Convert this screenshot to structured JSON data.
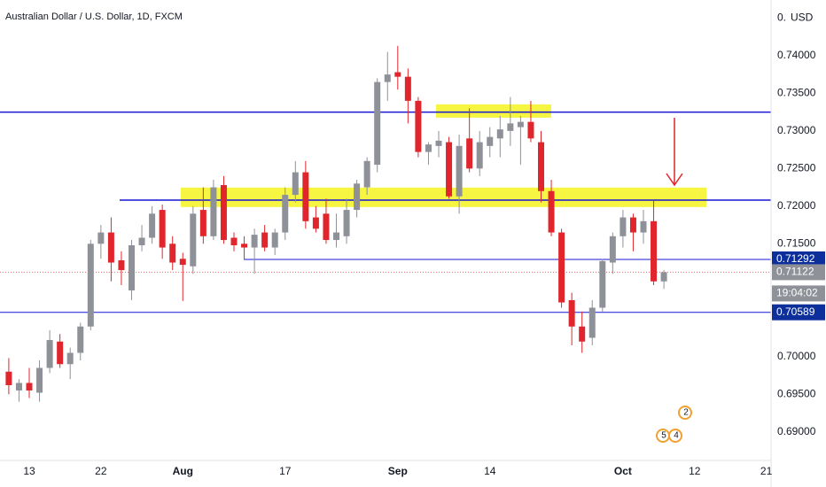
{
  "chart_data": {
    "type": "candlestick",
    "title": "Australian Dollar / U.S. Dollar, 1D, FXCM",
    "currency_label": "USD",
    "categories": [
      null,
      null,
      "13",
      null,
      null,
      null,
      null,
      null,
      null,
      "22",
      null,
      null,
      null,
      null,
      null,
      null,
      null,
      "Aug",
      null,
      null,
      null,
      null,
      null,
      null,
      null,
      null,
      null,
      "17",
      null,
      null,
      null,
      null,
      null,
      null,
      null,
      null,
      null,
      null,
      "Sep",
      null,
      null,
      null,
      null,
      null,
      null,
      null,
      null,
      "14",
      null,
      null,
      null,
      null,
      null,
      null,
      null,
      null,
      null,
      null,
      null,
      null,
      "Oct",
      null,
      null,
      null,
      null,
      null,
      null,
      "12",
      null,
      null,
      null,
      null,
      null,
      null,
      "21"
    ],
    "open": [
      0.698,
      0.6955,
      0.6965,
      0.6952,
      0.6985,
      0.702,
      0.699,
      0.7005,
      0.704,
      0.715,
      0.7165,
      0.7128,
      0.7088,
      0.7148,
      0.7158,
      0.7195,
      0.715,
      0.713,
      0.712,
      0.7195,
      0.716,
      0.7228,
      0.7158,
      0.715,
      0.7145,
      0.7165,
      0.7145,
      0.7165,
      0.7215,
      0.7245,
      0.7185,
      0.719,
      0.7155,
      0.716,
      0.7195,
      0.7225,
      0.7255,
      0.7365,
      0.7378,
      0.7372,
      0.734,
      0.7272,
      0.728,
      0.7285,
      0.7213,
      0.729,
      0.725,
      0.728,
      0.729,
      0.73,
      0.7305,
      0.7312,
      0.7285,
      0.722,
      0.7165,
      0.7075,
      0.704,
      0.7025,
      0.7065,
      0.7125,
      0.716,
      0.7185,
      0.7165,
      0.718,
      0.71,
      null,
      null,
      null,
      null,
      null,
      null,
      null,
      null,
      null,
      null
    ],
    "high": [
      0.6998,
      0.697,
      0.6985,
      0.6995,
      0.7035,
      0.703,
      0.7012,
      0.7045,
      0.7155,
      0.7175,
      0.7185,
      0.714,
      0.7155,
      0.7175,
      0.72,
      0.7202,
      0.716,
      0.7138,
      0.72,
      0.7225,
      0.7235,
      0.724,
      0.7165,
      0.716,
      0.717,
      0.7175,
      0.717,
      0.7225,
      0.726,
      0.726,
      0.72,
      0.721,
      0.719,
      0.721,
      0.7235,
      0.7265,
      0.737,
      0.7405,
      0.7413,
      0.7383,
      0.7345,
      0.7285,
      0.73,
      0.7292,
      0.7295,
      0.733,
      0.73,
      0.7305,
      0.732,
      0.7345,
      0.732,
      0.734,
      0.73,
      0.7235,
      0.717,
      0.7085,
      0.706,
      0.7075,
      0.713,
      0.7165,
      0.7195,
      0.719,
      0.7195,
      0.7208,
      0.7115,
      null,
      null,
      null,
      null,
      null,
      null,
      null,
      null,
      null,
      null
    ],
    "low": [
      0.695,
      0.694,
      0.6945,
      0.694,
      0.6978,
      0.6985,
      0.697,
      0.6995,
      0.7035,
      0.713,
      0.71,
      0.7095,
      0.7075,
      0.714,
      0.715,
      0.713,
      0.7115,
      0.7074,
      0.711,
      0.715,
      0.7155,
      0.715,
      0.714,
      0.713,
      0.711,
      0.714,
      0.7135,
      0.7155,
      0.7205,
      0.717,
      0.7165,
      0.715,
      0.7145,
      0.715,
      0.7185,
      0.7215,
      0.7245,
      0.734,
      0.7355,
      0.731,
      0.7265,
      0.7255,
      0.7265,
      0.721,
      0.719,
      0.7245,
      0.724,
      0.7265,
      0.7265,
      0.728,
      0.7255,
      0.7285,
      0.7205,
      0.716,
      0.7065,
      0.7015,
      0.7005,
      0.7015,
      0.706,
      0.711,
      0.7145,
      0.714,
      0.715,
      0.7095,
      0.709,
      null,
      null,
      null,
      null,
      null,
      null,
      null,
      null,
      null,
      null
    ],
    "close": [
      0.6962,
      0.6965,
      0.6955,
      0.6985,
      0.7022,
      0.699,
      0.7005,
      0.704,
      0.715,
      0.7165,
      0.7125,
      0.7115,
      0.7148,
      0.7158,
      0.719,
      0.7145,
      0.7125,
      0.7122,
      0.719,
      0.716,
      0.7225,
      0.7155,
      0.7148,
      0.7145,
      0.7162,
      0.7145,
      0.7165,
      0.7215,
      0.7245,
      0.718,
      0.717,
      0.7155,
      0.7165,
      0.7195,
      0.723,
      0.726,
      0.7365,
      0.7375,
      0.7372,
      0.734,
      0.7272,
      0.7282,
      0.7287,
      0.7213,
      0.728,
      0.725,
      0.7285,
      0.7292,
      0.7302,
      0.731,
      0.7312,
      0.729,
      0.722,
      0.7165,
      0.7072,
      0.704,
      0.702,
      0.7065,
      0.7127,
      0.716,
      0.7185,
      0.7165,
      0.718,
      0.71,
      0.71122,
      null,
      null,
      null,
      null,
      null,
      null,
      null,
      null,
      null,
      null
    ],
    "up_color": "#8f9199",
    "down_color": "#e0262c",
    "last_price": 0.71122,
    "countdown": "19:04:02",
    "levels": [
      0.7325,
      0.7208
    ],
    "price_lines": [
      0.71292,
      0.70589
    ],
    "level_color": "#1717d4",
    "zones": [
      {
        "top": 0.72247,
        "bottom": 0.71988
      },
      {
        "top": 0.73353,
        "bottom": 0.73176
      }
    ],
    "zone_color": "#f4f213",
    "events": [
      "2",
      "5",
      "4"
    ],
    "ylim": [
      0.6862,
      0.7474
    ],
    "yticks": [
      {
        "value": 0.745,
        "label": "0."
      },
      {
        "value": 0.74,
        "label": "0.74000"
      },
      {
        "value": 0.735,
        "label": "0.73500"
      },
      {
        "value": 0.73,
        "label": "0.73000"
      },
      {
        "value": 0.725,
        "label": "0.72500"
      },
      {
        "value": 0.72,
        "label": "0.72000"
      },
      {
        "value": 0.715,
        "label": "0.71500"
      },
      {
        "value": 0.7,
        "label": "0.70000"
      },
      {
        "value": 0.695,
        "label": "0.69500"
      },
      {
        "value": 0.69,
        "label": "0.69000"
      }
    ],
    "grid": false
  }
}
